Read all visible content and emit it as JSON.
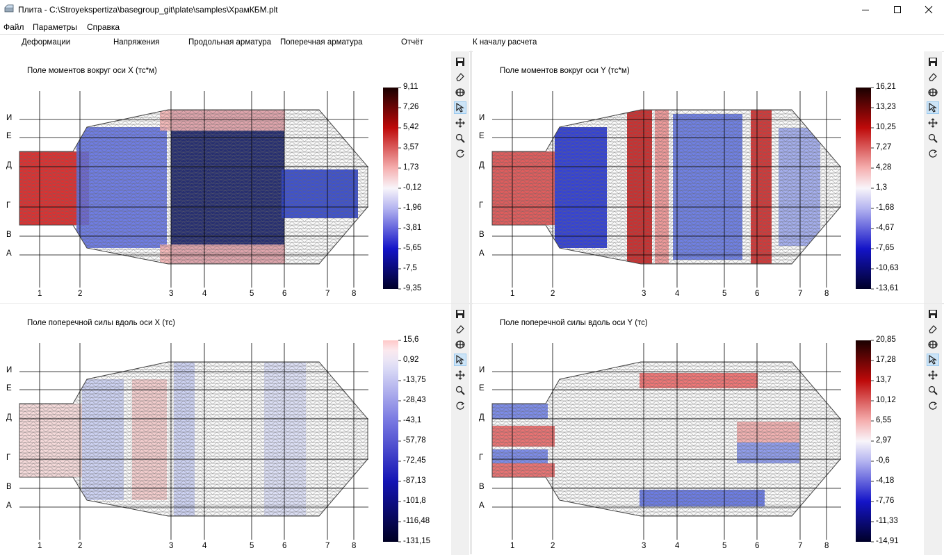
{
  "window": {
    "title": "Плита - C:\\Stroyekspertiza\\basegroup_git\\plate\\samples\\ХрамКБМ.plt"
  },
  "menu": [
    "Файл",
    "Параметры",
    "Справка"
  ],
  "tabs": [
    "Деформации",
    "Напряжения",
    "Продольная арматура",
    "Поперечная арматура",
    "Отчёт",
    "К началу расчета"
  ],
  "tools": [
    "save-icon",
    "eraser-icon",
    "grid-icon",
    "pointer-icon",
    "move-icon",
    "zoom-icon",
    "reset-view-icon"
  ],
  "axes": {
    "rows": [
      "И",
      "Е",
      "Д",
      "Г",
      "В",
      "А"
    ],
    "cols": [
      "1",
      "2",
      "3",
      "4",
      "5",
      "6",
      "7",
      "8"
    ]
  },
  "panels": [
    {
      "title": "Поле моментов вокруг оси X (тс*м)",
      "scale": [
        "9,11",
        "7,26",
        "5,42",
        "3,57",
        "1,73",
        "-0,12",
        "-1,96",
        "-3,81",
        "-5,65",
        "-7,5",
        "-9,35"
      ],
      "colormap": "full"
    },
    {
      "title": "Поле моментов вокруг оси Y (тс*м)",
      "scale": [
        "16,21",
        "13,23",
        "10,25",
        "7,27",
        "4,28",
        "1,3",
        "-1,68",
        "-4,67",
        "-7,65",
        "-10,63",
        "-13,61"
      ],
      "colormap": "full"
    },
    {
      "title": "Поле поперечной силы вдоль оси X (тс)",
      "scale": [
        "15,6",
        "0,92",
        "-13,75",
        "-28,43",
        "-43,1",
        "-57,78",
        "-72,45",
        "-87,13",
        "-101,8",
        "-116,48",
        "-131,15"
      ],
      "colormap": "bluish"
    },
    {
      "title": "Поле поперечной силы вдоль оси Y (тс)",
      "scale": [
        "20,85",
        "17,28",
        "13,7",
        "10,12",
        "6,55",
        "2,97",
        "-0,6",
        "-4,18",
        "-7,76",
        "-11,33",
        "-14,91"
      ],
      "colormap": "full"
    }
  ]
}
